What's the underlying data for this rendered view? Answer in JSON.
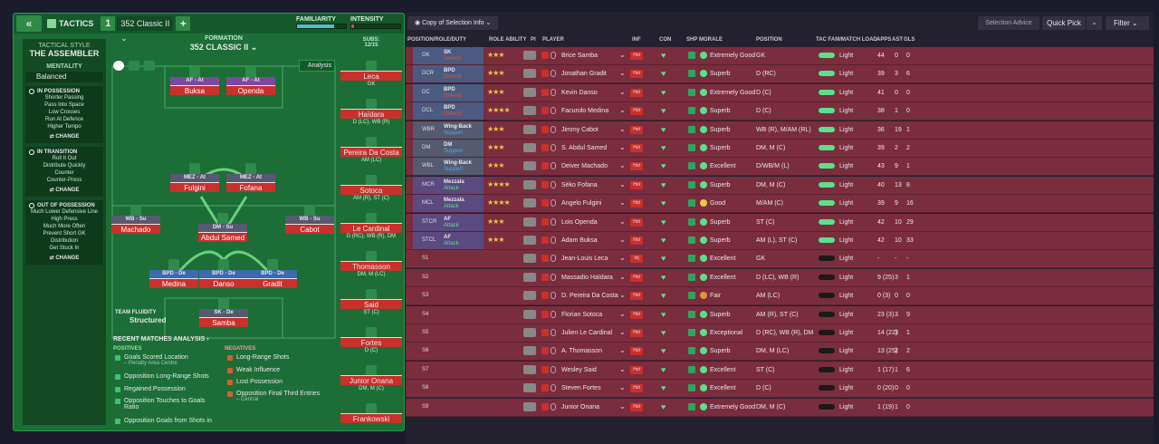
{
  "topbar": {
    "back": "«",
    "tactics": "TACTICS",
    "num": "1",
    "formation_sel": "352 Classic II",
    "plus": "+",
    "familiarity": "FAMILIARITY",
    "intensity": "INTENSITY",
    "familiarity_level": 0.75,
    "intensity_level": 0.06
  },
  "side": {
    "style_title": "TACTICAL STYLE",
    "style": "THE ASSEMBLER",
    "mentality_title": "MENTALITY",
    "mentality": "Balanced",
    "sections": [
      {
        "title": "IN POSSESSION",
        "items": [
          "Shorter Passing",
          "Pass Into Space",
          "Low Crosses",
          "Run At Defence",
          "Higher Tempo"
        ],
        "change": "CHANGE"
      },
      {
        "title": "IN TRANSITION",
        "items": [
          "Roll It Out",
          "Distribute Quickly",
          "Counter",
          "Counter-Press"
        ],
        "change": "CHANGE"
      },
      {
        "title": "OUT OF POSSESSION",
        "items": [
          "Much Lower Defensive Line",
          "High Press",
          "Much More Often",
          "Prevent Short GK",
          "Distribution",
          "Get Stuck In"
        ],
        "change": "CHANGE"
      }
    ]
  },
  "pitch": {
    "formation_label": "FORMATION",
    "formation": "352 CLASSIC II",
    "analysis": "Analysis",
    "fluidity_label": "TEAM FLUIDITY",
    "fluidity": "Structured",
    "players": [
      {
        "role": "AF - At",
        "name": "Buksa"
      },
      {
        "role": "AF - At",
        "name": "Openda"
      },
      {
        "role": "MEZ - At",
        "name": "Fulgini"
      },
      {
        "role": "MEZ - At",
        "name": "Fofana"
      },
      {
        "role": "WB - Su",
        "name": "Machado"
      },
      {
        "role": "DM - Su",
        "name": "Abdul Samed"
      },
      {
        "role": "WB - Su",
        "name": "Cabot"
      },
      {
        "role": "BPD - De",
        "name": "Medina"
      },
      {
        "role": "BPD - De",
        "name": "Danso"
      },
      {
        "role": "BPD - De",
        "name": "Gradit"
      },
      {
        "role": "SK - De",
        "name": "Samba"
      }
    ]
  },
  "analysis": {
    "title": "RECENT MATCHES ANALYSIS ›",
    "positives_title": "POSITIVES",
    "negatives_title": "NEGATIVES",
    "positives": [
      {
        "t": "Goals Scored Location",
        "s": "– Penalty Area Centre"
      },
      {
        "t": "Opposition Long-Range Shots",
        "s": ""
      },
      {
        "t": "Regained Possession",
        "s": ""
      },
      {
        "t": "Opposition Touches to Goals Ratio",
        "s": ""
      },
      {
        "t": "Opposition Goals from Shots in",
        "s": ""
      }
    ],
    "negatives": [
      {
        "t": "Long-Range Shots",
        "s": ""
      },
      {
        "t": "Weak Influence",
        "s": ""
      },
      {
        "t": "Lost Possession",
        "s": ""
      },
      {
        "t": "Opposition Final Third Entries",
        "s": "– Central"
      }
    ]
  },
  "subs": {
    "title": "SUBS:",
    "count": "12/15",
    "players": [
      {
        "name": "Leca",
        "pos": "GK"
      },
      {
        "name": "Haïdara",
        "pos": "D (LC), WB (R)"
      },
      {
        "name": "Pereira Da Costa",
        "pos": "AM (LC)"
      },
      {
        "name": "Sotoca",
        "pos": "AM (R), ST (C)"
      },
      {
        "name": "Le Cardinal",
        "pos": "D (RC), WB (R), DM"
      },
      {
        "name": "Thomasson",
        "pos": "DM, M (LC)"
      },
      {
        "name": "Said",
        "pos": "ST (C)"
      },
      {
        "name": "Fortes",
        "pos": "D (C)"
      },
      {
        "name": "Junior Onana",
        "pos": "DM, M (C)"
      },
      {
        "name": "Frankowski",
        "pos": ""
      }
    ]
  },
  "right": {
    "copy": "Copy of Selection Info",
    "advice": "Selection Advice",
    "quickpick": "Quick Pick",
    "filter": "Filter",
    "headers": [
      "POSITION/ROLE/DUTY",
      "ROLE ABILITY",
      "PI",
      "PLAYER",
      "INF",
      "CON",
      "SHP",
      "MORALE",
      "POSITION",
      "TAC FAM/MATCH LOAD",
      "APPS",
      "AST",
      "GLS"
    ],
    "rows": [
      {
        "pc": "GK",
        "role": "SK",
        "duty": "Defend",
        "stars": "★★★",
        "player": "Brice Samba",
        "inf": "Hol",
        "morale": "Extremely Good",
        "position": "GK",
        "load": "Light",
        "apps": "44",
        "ast": "0",
        "gls": "0"
      },
      {
        "pc": "DCR",
        "role": "BPD",
        "duty": "Defend",
        "stars": "★★★",
        "player": "Jonathan Gradit",
        "inf": "Hol",
        "morale": "Superb",
        "position": "D (RC)",
        "load": "Light",
        "apps": "39",
        "ast": "3",
        "gls": "6"
      },
      {
        "pc": "DC",
        "role": "BPD",
        "duty": "Defend",
        "stars": "★★★",
        "player": "Kevin Danso",
        "inf": "Hol",
        "morale": "Extremely Good",
        "position": "D (C)",
        "load": "Light",
        "apps": "41",
        "ast": "0",
        "gls": "0"
      },
      {
        "pc": "DCL",
        "role": "BPD",
        "duty": "Defend",
        "stars": "★★★★",
        "player": "Facundo Medina",
        "inf": "Hol",
        "morale": "Superb",
        "position": "D (C)",
        "load": "Light",
        "apps": "38",
        "ast": "1",
        "gls": "0"
      },
      {
        "pc": "WBR",
        "role": "Wing-Back",
        "duty": "Support",
        "stars": "★★★",
        "player": "Jimmy Cabot",
        "inf": "Hol",
        "morale": "Superb",
        "position": "WB (R), M/AM (RL)",
        "load": "Light",
        "apps": "36",
        "ast": "19",
        "gls": "1"
      },
      {
        "pc": "DM",
        "role": "DM",
        "duty": "Support",
        "stars": "★★★",
        "player": "S. Abdul Samed",
        "inf": "Hol",
        "morale": "Superb",
        "position": "DM, M (C)",
        "load": "Light",
        "apps": "39",
        "ast": "2",
        "gls": "2"
      },
      {
        "pc": "WBL",
        "role": "Wing-Back",
        "duty": "Support",
        "stars": "★★★",
        "player": "Deiver Machado",
        "inf": "Hol",
        "morale": "Excellent",
        "position": "D/WB/M (L)",
        "load": "Light",
        "apps": "43",
        "ast": "9",
        "gls": "1"
      },
      {
        "pc": "MCR",
        "role": "Mezzala",
        "duty": "Attack",
        "stars": "★★★★",
        "player": "Séko Fofana",
        "inf": "Hol",
        "morale": "Superb",
        "position": "DM, M (C)",
        "load": "Light",
        "apps": "40",
        "ast": "13",
        "gls": "8"
      },
      {
        "pc": "MCL",
        "role": "Mezzala",
        "duty": "Attack",
        "stars": "★★★★",
        "player": "Angelo Fulgini",
        "inf": "Hol",
        "morale": "Good",
        "position": "M/AM (C)",
        "load": "Light",
        "apps": "39",
        "ast": "9",
        "gls": "16"
      },
      {
        "pc": "STCR",
        "role": "AF",
        "duty": "Attack",
        "stars": "★★★",
        "player": "Lois Openda",
        "inf": "Hol",
        "morale": "Superb",
        "position": "ST (C)",
        "load": "Light",
        "apps": "42",
        "ast": "10",
        "gls": "29"
      },
      {
        "pc": "STCL",
        "role": "AF",
        "duty": "Attack",
        "stars": "★★★",
        "player": "Adam Buksa",
        "inf": "Hol",
        "morale": "Superb",
        "position": "AM (L), ST (C)",
        "load": "Light",
        "apps": "42",
        "ast": "10",
        "gls": "33"
      },
      {
        "pc": "S1",
        "role": "",
        "duty": "",
        "stars": "",
        "player": "Jean-Louis Leca",
        "inf": "Inj",
        "morale": "Excellent",
        "position": "GK",
        "load": "Light",
        "apps": "-",
        "ast": "-",
        "gls": "-"
      },
      {
        "pc": "S2",
        "role": "",
        "duty": "",
        "stars": "",
        "player": "Massadio Haïdara",
        "inf": "Hol",
        "morale": "Excellent",
        "position": "D (LC), WB (R)",
        "load": "Light",
        "apps": "9 (25)",
        "ast": "3",
        "gls": "1"
      },
      {
        "pc": "S3",
        "role": "",
        "duty": "",
        "stars": "",
        "player": "D. Pereira Da Costa",
        "inf": "Hol",
        "morale": "Fair",
        "position": "AM (LC)",
        "load": "Light",
        "apps": "0 (3)",
        "ast": "0",
        "gls": "0"
      },
      {
        "pc": "S4",
        "role": "",
        "duty": "",
        "stars": "",
        "player": "Florian Sotoca",
        "inf": "Hol",
        "morale": "Superb",
        "position": "AM (R), ST (C)",
        "load": "Light",
        "apps": "23 (3)",
        "ast": "3",
        "gls": "9"
      },
      {
        "pc": "S5",
        "role": "",
        "duty": "",
        "stars": "",
        "player": "Julien Le Cardinal",
        "inf": "Hol",
        "morale": "Exceptional",
        "position": "D (RC), WB (R), DM",
        "load": "Light",
        "apps": "14 (22)",
        "ast": "3",
        "gls": "1"
      },
      {
        "pc": "S6",
        "role": "",
        "duty": "",
        "stars": "",
        "player": "A. Thomasson",
        "inf": "Hol",
        "morale": "Superb",
        "position": "DM, M (LC)",
        "load": "Light",
        "apps": "13 (25)",
        "ast": "2",
        "gls": "2"
      },
      {
        "pc": "S7",
        "role": "",
        "duty": "",
        "stars": "",
        "player": "Wesley Said",
        "inf": "Hol",
        "morale": "Excellent",
        "position": "ST (C)",
        "load": "Light",
        "apps": "1 (17)",
        "ast": "1",
        "gls": "6"
      },
      {
        "pc": "S8",
        "role": "",
        "duty": "",
        "stars": "",
        "player": "Steven Fortes",
        "inf": "Hol",
        "morale": "Excellent",
        "position": "D (C)",
        "load": "Light",
        "apps": "0 (20)",
        "ast": "0",
        "gls": "0"
      },
      {
        "pc": "S9",
        "role": "",
        "duty": "",
        "stars": "",
        "player": "Junior Onana",
        "inf": "Hol",
        "morale": "Extremely Good",
        "position": "DM, M (C)",
        "load": "Light",
        "apps": "1 (19)",
        "ast": "1",
        "gls": "0"
      }
    ]
  }
}
